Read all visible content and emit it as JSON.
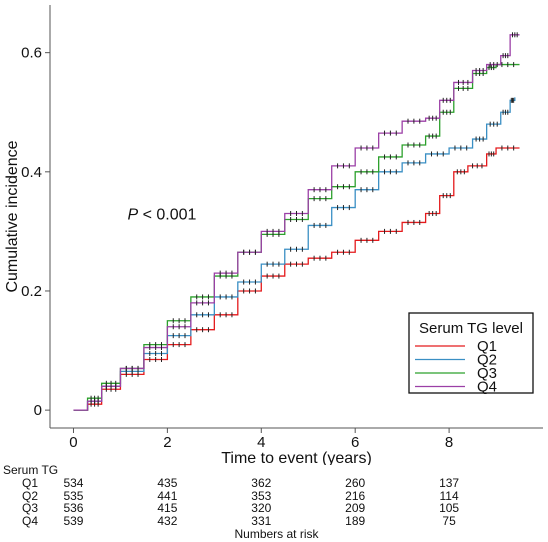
{
  "chart_data": {
    "type": "line",
    "step": true,
    "xlabel": "Time to event (years)",
    "ylabel": "Cumulative incidence",
    "xlim": [
      -0.5,
      10.0
    ],
    "ylim": [
      -0.03,
      0.68
    ],
    "xticks": [
      0,
      2,
      4,
      6,
      8
    ],
    "yticks": [
      0,
      0.2,
      0.4,
      0.6
    ],
    "xtick_labels": [
      "0",
      "2",
      "4",
      "6",
      "8"
    ],
    "ytick_labels": [
      "0",
      "0.2",
      "0.4",
      "0.6"
    ],
    "grid": false,
    "annotation": {
      "p_italic": "P",
      "p_rest": " < 0.001",
      "x": 1.15,
      "y": 0.32
    },
    "legend": {
      "title": "Serum TG level",
      "position": "bottom-right",
      "entries": [
        "Q1",
        "Q2",
        "Q3",
        "Q4"
      ]
    },
    "series": [
      {
        "name": "Q1",
        "color": "#e41a1c",
        "points": [
          [
            0,
            0
          ],
          [
            0.3,
            0.01
          ],
          [
            0.6,
            0.035
          ],
          [
            1.0,
            0.06
          ],
          [
            1.5,
            0.085
          ],
          [
            2.0,
            0.11
          ],
          [
            2.5,
            0.135
          ],
          [
            3.0,
            0.16
          ],
          [
            3.5,
            0.2
          ],
          [
            4.0,
            0.225
          ],
          [
            4.5,
            0.245
          ],
          [
            5.0,
            0.255
          ],
          [
            5.5,
            0.265
          ],
          [
            6.0,
            0.285
          ],
          [
            6.5,
            0.3
          ],
          [
            7.0,
            0.315
          ],
          [
            7.5,
            0.33
          ],
          [
            7.8,
            0.36
          ],
          [
            8.1,
            0.4
          ],
          [
            8.4,
            0.41
          ],
          [
            8.8,
            0.43
          ],
          [
            9.0,
            0.44
          ],
          [
            9.5,
            0.44
          ]
        ]
      },
      {
        "name": "Q2",
        "color": "#3a8fc4",
        "points": [
          [
            0,
            0
          ],
          [
            0.3,
            0.015
          ],
          [
            0.6,
            0.04
          ],
          [
            1.0,
            0.065
          ],
          [
            1.5,
            0.095
          ],
          [
            2.0,
            0.125
          ],
          [
            2.5,
            0.16
          ],
          [
            3.0,
            0.19
          ],
          [
            3.5,
            0.215
          ],
          [
            4.0,
            0.245
          ],
          [
            4.5,
            0.27
          ],
          [
            5.0,
            0.31
          ],
          [
            5.5,
            0.34
          ],
          [
            6.0,
            0.37
          ],
          [
            6.5,
            0.4
          ],
          [
            7.0,
            0.415
          ],
          [
            7.5,
            0.43
          ],
          [
            8.0,
            0.44
          ],
          [
            8.5,
            0.455
          ],
          [
            8.8,
            0.48
          ],
          [
            9.1,
            0.5
          ],
          [
            9.3,
            0.52
          ],
          [
            9.4,
            0.525
          ]
        ]
      },
      {
        "name": "Q3",
        "color": "#2ca02c",
        "points": [
          [
            0,
            0
          ],
          [
            0.3,
            0.02
          ],
          [
            0.6,
            0.045
          ],
          [
            1.0,
            0.07
          ],
          [
            1.5,
            0.11
          ],
          [
            2.0,
            0.15
          ],
          [
            2.5,
            0.19
          ],
          [
            3.0,
            0.225
          ],
          [
            3.5,
            0.265
          ],
          [
            4.0,
            0.295
          ],
          [
            4.5,
            0.32
          ],
          [
            5.0,
            0.355
          ],
          [
            5.5,
            0.375
          ],
          [
            6.0,
            0.4
          ],
          [
            6.5,
            0.425
          ],
          [
            7.0,
            0.445
          ],
          [
            7.5,
            0.46
          ],
          [
            7.8,
            0.5
          ],
          [
            8.1,
            0.54
          ],
          [
            8.5,
            0.565
          ],
          [
            8.8,
            0.575
          ],
          [
            9.0,
            0.58
          ],
          [
            9.5,
            0.58
          ]
        ]
      },
      {
        "name": "Q4",
        "color": "#9b3fa6",
        "points": [
          [
            0,
            0
          ],
          [
            0.3,
            0.015
          ],
          [
            0.6,
            0.04
          ],
          [
            1.0,
            0.07
          ],
          [
            1.5,
            0.105
          ],
          [
            2.0,
            0.14
          ],
          [
            2.5,
            0.18
          ],
          [
            3.0,
            0.23
          ],
          [
            3.5,
            0.265
          ],
          [
            4.0,
            0.3
          ],
          [
            4.5,
            0.33
          ],
          [
            5.0,
            0.37
          ],
          [
            5.5,
            0.41
          ],
          [
            6.0,
            0.44
          ],
          [
            6.5,
            0.465
          ],
          [
            7.0,
            0.485
          ],
          [
            7.5,
            0.49
          ],
          [
            7.8,
            0.52
          ],
          [
            8.1,
            0.55
          ],
          [
            8.5,
            0.57
          ],
          [
            8.8,
            0.58
          ],
          [
            9.1,
            0.595
          ],
          [
            9.3,
            0.63
          ],
          [
            9.5,
            0.63
          ]
        ]
      }
    ]
  },
  "risk_table": {
    "header": "Serum TG",
    "caption": "Numbers at risk",
    "times": [
      0,
      2,
      4,
      6,
      8
    ],
    "rows": [
      {
        "label": "Q1",
        "values": [
          "534",
          "435",
          "362",
          "260",
          "137"
        ]
      },
      {
        "label": "Q2",
        "values": [
          "535",
          "441",
          "353",
          "216",
          "114"
        ]
      },
      {
        "label": "Q3",
        "values": [
          "536",
          "415",
          "320",
          "209",
          "105"
        ]
      },
      {
        "label": "Q4",
        "values": [
          "539",
          "432",
          "331",
          "189",
          "75"
        ]
      }
    ]
  }
}
